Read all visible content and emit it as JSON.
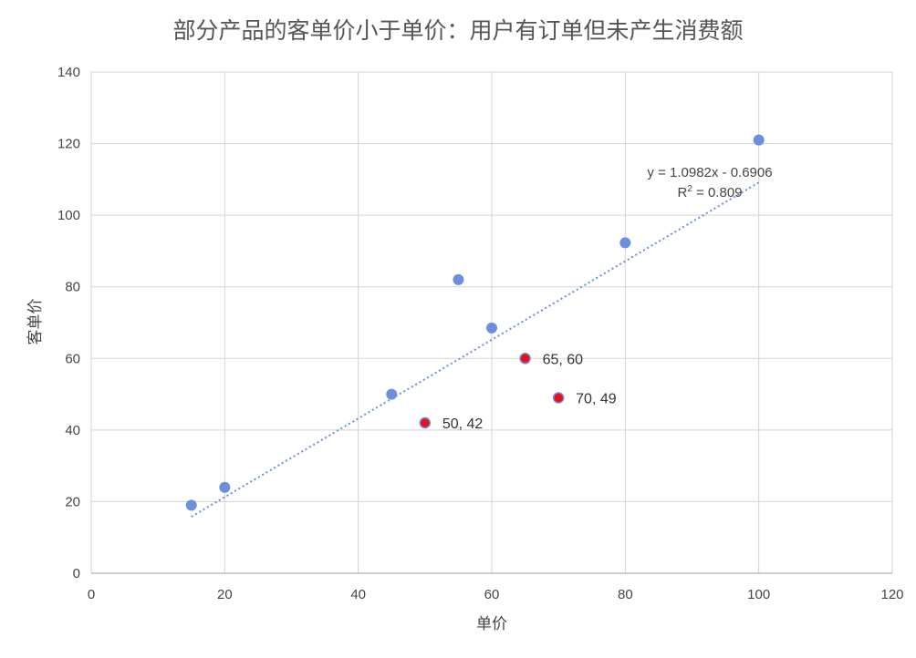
{
  "chart_data": {
    "type": "scatter",
    "title": "部分产品的客单价小于单价：用户有订单但未产生消费额",
    "xlabel": "单价",
    "ylabel": "客单价",
    "xlim": [
      0,
      120
    ],
    "ylim": [
      0,
      140
    ],
    "xticks": [
      0,
      20,
      40,
      60,
      80,
      100,
      120
    ],
    "yticks": [
      0,
      20,
      40,
      60,
      80,
      100,
      120,
      140
    ],
    "grid": true,
    "points": [
      {
        "x": 15,
        "y": 19,
        "highlight": false
      },
      {
        "x": 20,
        "y": 24,
        "highlight": false
      },
      {
        "x": 45,
        "y": 50,
        "highlight": false
      },
      {
        "x": 55,
        "y": 82,
        "highlight": false
      },
      {
        "x": 60,
        "y": 68.5,
        "highlight": false
      },
      {
        "x": 80,
        "y": 92.3,
        "highlight": false
      },
      {
        "x": 100,
        "y": 121,
        "highlight": false
      },
      {
        "x": 50,
        "y": 42,
        "highlight": true,
        "label": "50, 42"
      },
      {
        "x": 65,
        "y": 60,
        "highlight": true,
        "label": "65, 60"
      },
      {
        "x": 70,
        "y": 49,
        "highlight": true,
        "label": "70, 49"
      }
    ],
    "trendline": {
      "slope": 1.0982,
      "intercept": -0.6906,
      "x_range": [
        15,
        100
      ],
      "equation": "y = 1.0982x - 0.6906",
      "r2_label": "R",
      "r2_sup": "2",
      "r2_value": " = 0.809"
    },
    "colors": {
      "point": "#6b8fdb",
      "highlight_fill": "#e8101c",
      "highlight_ring": "#6b8fdb",
      "trendline": "#6b8fdb",
      "grid": "#d3d3d3",
      "axis": "#b0b0b0"
    }
  }
}
